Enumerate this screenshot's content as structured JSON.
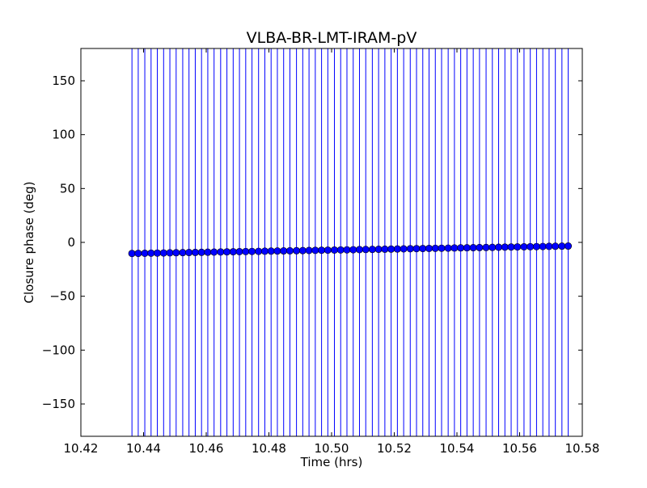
{
  "chart_data": {
    "type": "scatter",
    "title": "VLBA-BR-LMT-IRAM-pV",
    "xlabel": "Time (hrs)",
    "ylabel": "Closure phase (deg)",
    "xlim": [
      10.42,
      10.58
    ],
    "ylim": [
      -180,
      180
    ],
    "xticks": [
      10.42,
      10.44,
      10.46,
      10.48,
      10.5,
      10.52,
      10.54,
      10.56,
      10.58
    ],
    "xtick_labels": [
      "10.42",
      "10.44",
      "10.46",
      "10.48",
      "10.50",
      "10.52",
      "10.54",
      "10.56",
      "10.58"
    ],
    "yticks": [
      -150,
      -100,
      -50,
      0,
      50,
      100,
      150
    ],
    "ytick_labels": [
      "−150",
      "−100",
      "−50",
      "0",
      "50",
      "100",
      "150"
    ],
    "grid": false,
    "color": "#0000ff",
    "series": [
      {
        "x": [
          10.4363,
          10.4383,
          10.4404,
          10.4424,
          10.4444,
          10.4464,
          10.4484,
          10.4504,
          10.4525,
          10.4545,
          10.4565,
          10.4585,
          10.4605,
          10.4625,
          10.4646,
          10.4666,
          10.4686,
          10.4706,
          10.4726,
          10.4746,
          10.4767,
          10.4787,
          10.4807,
          10.4827,
          10.4847,
          10.4867,
          10.4888,
          10.4908,
          10.4928,
          10.4948,
          10.4968,
          10.4988,
          10.5009,
          10.5029,
          10.5049,
          10.5069,
          10.5089,
          10.5109,
          10.513,
          10.515,
          10.517,
          10.519,
          10.521,
          10.523,
          10.5251,
          10.5271,
          10.5291,
          10.5311,
          10.5331,
          10.5351,
          10.5372,
          10.5392,
          10.5412,
          10.5432,
          10.5452,
          10.5472,
          10.5493,
          10.5513,
          10.5533,
          10.5553,
          10.5573,
          10.5593,
          10.5614,
          10.5634,
          10.5654,
          10.5674,
          10.5694,
          10.5714,
          10.5735,
          10.5755
        ],
        "y": [
          -10.3,
          -10.2,
          -10.1,
          -10.0,
          -9.9,
          -9.8,
          -9.7,
          -9.6,
          -9.5,
          -9.4,
          -9.3,
          -9.2,
          -9.1,
          -9.0,
          -8.9,
          -8.8,
          -8.7,
          -8.6,
          -8.5,
          -8.4,
          -8.3,
          -8.2,
          -8.1,
          -8.0,
          -7.9,
          -7.8,
          -7.7,
          -7.6,
          -7.5,
          -7.4,
          -7.3,
          -7.2,
          -7.1,
          -7.0,
          -6.9,
          -6.8,
          -6.7,
          -6.6,
          -6.5,
          -6.4,
          -6.3,
          -6.2,
          -6.1,
          -6.0,
          -5.9,
          -5.8,
          -5.7,
          -5.6,
          -5.5,
          -5.4,
          -5.3,
          -5.2,
          -5.1,
          -5.0,
          -4.9,
          -4.8,
          -4.7,
          -4.6,
          -4.5,
          -4.4,
          -4.3,
          -4.2,
          -4.1,
          -4.0,
          -3.9,
          -3.8,
          -3.7,
          -3.6,
          -3.5,
          -3.4
        ],
        "error_bars": "span full y-range (beyond ±180)"
      }
    ]
  }
}
